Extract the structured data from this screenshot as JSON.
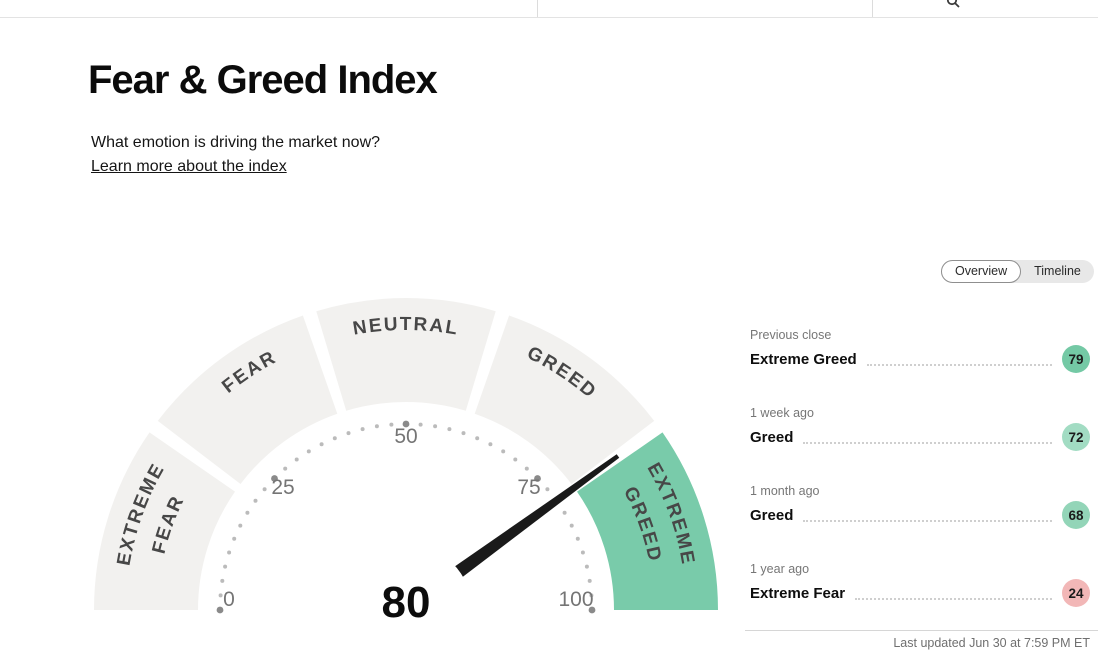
{
  "colors": {
    "accent_teal": "#79cbaa",
    "segment_gray": "#f2f1ef",
    "needle": "#1a1a1a",
    "tick_dot": "#bbbbbb",
    "tick_dot_major": "#8a8a8a"
  },
  "page": {
    "title": "Fear & Greed Index",
    "subtitle": "What emotion is driving the market now?",
    "learn_more_label": "Learn more about the index"
  },
  "view_toggle": {
    "options": [
      {
        "label": "Overview",
        "active": true
      },
      {
        "label": "Timeline",
        "active": false
      }
    ]
  },
  "chart_data": {
    "type": "gauge",
    "title": "Fear & Greed Index",
    "value": 80,
    "min": 0,
    "max": 100,
    "current_rating": "Extreme Greed",
    "ticks": [
      "0",
      "25",
      "50",
      "75",
      "100"
    ],
    "segments": [
      {
        "label": "Extreme Fear",
        "highlight": false
      },
      {
        "label": "Fear",
        "highlight": false
      },
      {
        "label": "Neutral",
        "highlight": false
      },
      {
        "label": "Greed",
        "highlight": false
      },
      {
        "label": "Extreme Greed",
        "highlight": true
      }
    ],
    "arc_labels": {
      "extreme_fear_line1": "EXTREME",
      "extreme_fear_line2": "FEAR",
      "fear": "FEAR",
      "neutral": "NEUTRAL",
      "greed": "GREED",
      "extreme_greed_line1": "EXTREME",
      "extreme_greed_line2": "GREED"
    }
  },
  "history": {
    "rows": [
      {
        "period": "Previous close",
        "rating": "Extreme Greed",
        "value": "79",
        "badge_color": "#74c9a5"
      },
      {
        "period": "1 week ago",
        "rating": "Greed",
        "value": "72",
        "badge_color": "#a2dcc3"
      },
      {
        "period": "1 month ago",
        "rating": "Greed",
        "value": "68",
        "badge_color": "#93d5b8"
      },
      {
        "period": "1 year ago",
        "rating": "Extreme Fear",
        "value": "24",
        "badge_color": "#f2b7b7"
      }
    ]
  },
  "footer": {
    "last_updated": "Last updated Jun 30 at 7:59 PM ET"
  }
}
